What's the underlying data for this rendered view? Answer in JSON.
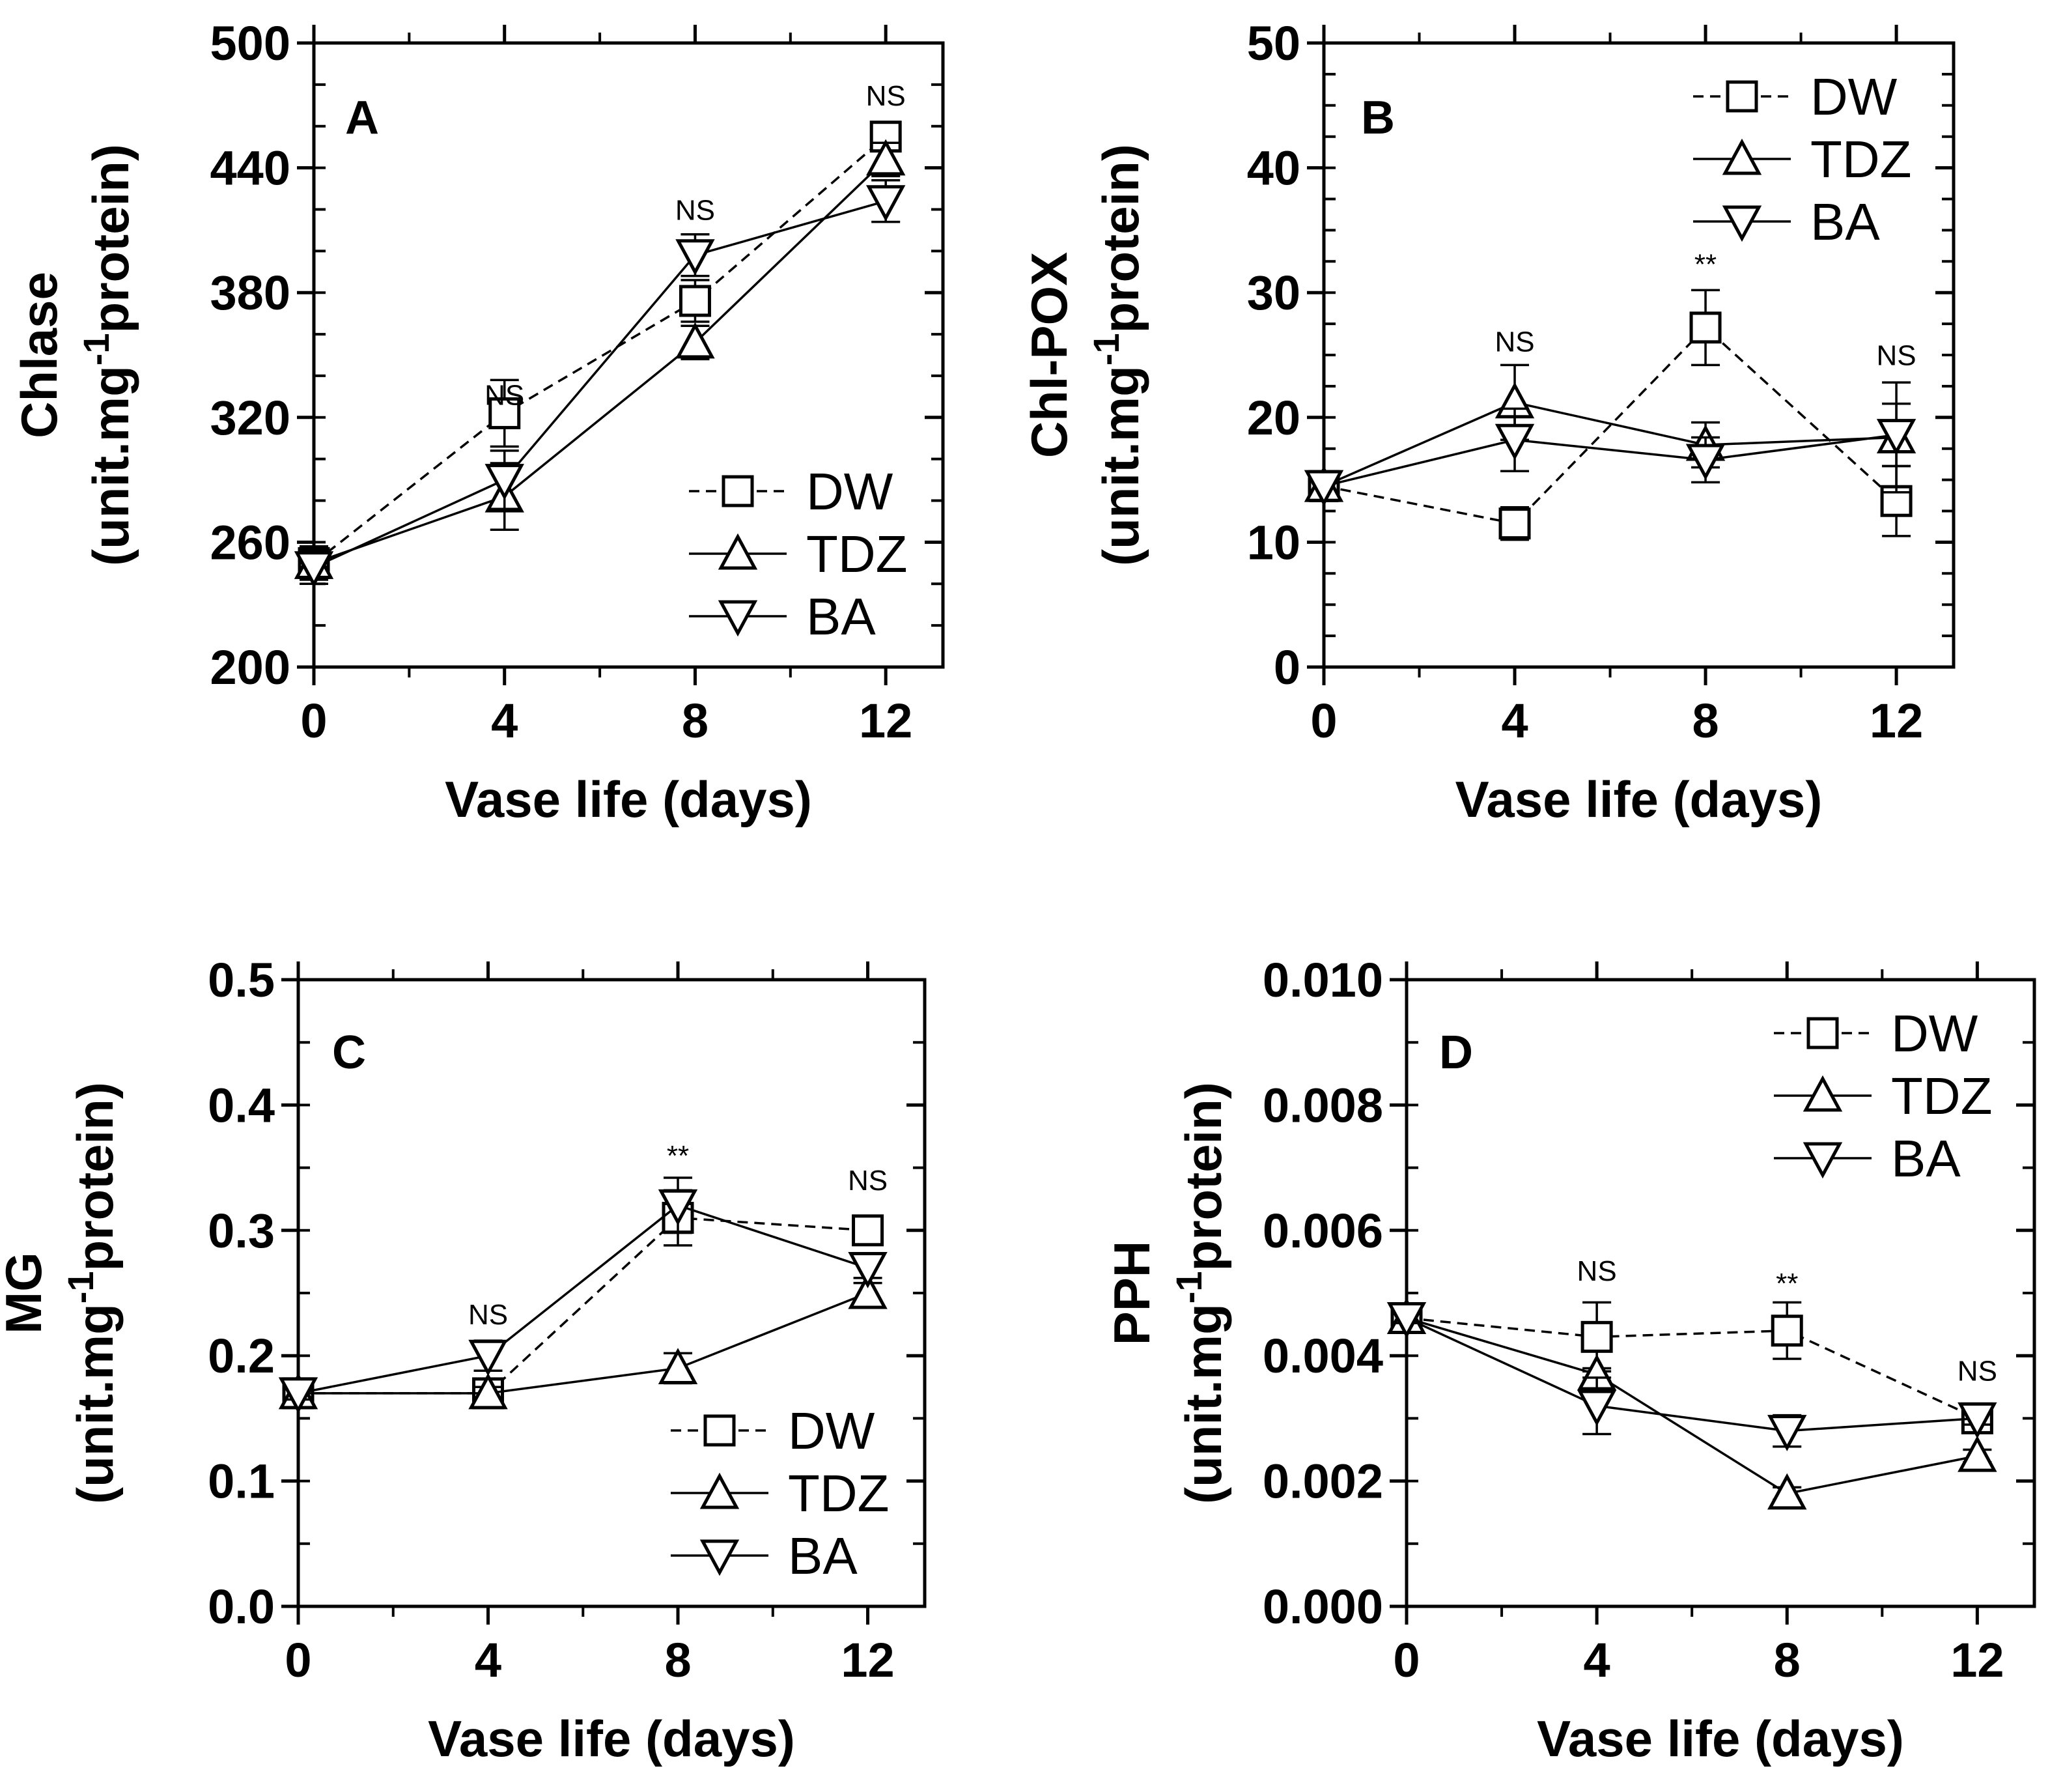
{
  "chart_data": [
    {
      "type": "line",
      "panel_label": "A",
      "title": "",
      "ylabel": "Chlase",
      "ylabel_unit": "(unit.mg",
      "ylabel_sup": "-1",
      "ylabel_unit_tail": "protein)",
      "xlabel": "Vase life (days)",
      "x": [
        0,
        4,
        8,
        12
      ],
      "xticks": [
        0,
        4,
        8,
        12
      ],
      "xtick_labels": [
        "0",
        "4",
        "8",
        "12"
      ],
      "xlim": [
        0,
        13.2
      ],
      "ylim": [
        200,
        500
      ],
      "yticks": [
        200,
        260,
        320,
        380,
        440,
        500
      ],
      "ytick_labels": [
        "200",
        "260",
        "320",
        "380",
        "440",
        "500"
      ],
      "y_minor_step": 20,
      "series": [
        {
          "name": "DW",
          "marker": "square",
          "dashed": true,
          "values": [
            250,
            322,
            376,
            455
          ],
          "errors": [
            8,
            16,
            10,
            6
          ]
        },
        {
          "name": "TDZ",
          "marker": "triangle-up",
          "dashed": false,
          "values": [
            250,
            282,
            356,
            444
          ],
          "errors": [
            8,
            16,
            8,
            8
          ]
        },
        {
          "name": "BA",
          "marker": "triangle-down",
          "dashed": false,
          "values": [
            248,
            290,
            398,
            424
          ],
          "errors": [
            8,
            14,
            10,
            10
          ]
        }
      ],
      "annotations": [
        {
          "x": 4,
          "y": 326,
          "text": "NS"
        },
        {
          "x": 8,
          "y": 415,
          "text": "NS"
        },
        {
          "x": 12,
          "y": 470,
          "text": "NS"
        }
      ],
      "legend_entries": [
        "DW",
        "TDZ",
        "BA"
      ],
      "legend_position": "bottom-right"
    },
    {
      "type": "line",
      "panel_label": "B",
      "title": "",
      "ylabel": "Chl-POX",
      "ylabel_unit": "(unit.mg",
      "ylabel_sup": "-1",
      "ylabel_unit_tail": "protein)",
      "xlabel": "Vase life (days)",
      "x": [
        0,
        4,
        8,
        12
      ],
      "xticks": [
        0,
        4,
        8,
        12
      ],
      "xtick_labels": [
        "0",
        "4",
        "8",
        "12"
      ],
      "xlim": [
        0,
        13.2
      ],
      "ylim": [
        0,
        50
      ],
      "yticks": [
        0,
        10,
        20,
        30,
        40,
        50
      ],
      "ytick_labels": [
        "0",
        "10",
        "20",
        "30",
        "40",
        "50"
      ],
      "y_minor_step": 2.5,
      "series": [
        {
          "name": "DW",
          "marker": "square",
          "dashed": true,
          "values": [
            14.5,
            11.5,
            27.2,
            13.3
          ],
          "errors": [
            1.2,
            1.3,
            3.0,
            2.8
          ]
        },
        {
          "name": "TDZ",
          "marker": "triangle-up",
          "dashed": false,
          "values": [
            14.5,
            21.2,
            17.8,
            18.4
          ],
          "errors": [
            1.2,
            3.0,
            1.8,
            4.4
          ]
        },
        {
          "name": "BA",
          "marker": "triangle-down",
          "dashed": false,
          "values": [
            14.5,
            18.2,
            16.6,
            18.6
          ],
          "errors": [
            1.2,
            2.5,
            1.8,
            2.5
          ]
        }
      ],
      "annotations": [
        {
          "x": 4,
          "y": 25.3,
          "text": "NS"
        },
        {
          "x": 8,
          "y": 31.5,
          "text": "**"
        },
        {
          "x": 12,
          "y": 24.2,
          "text": "NS"
        }
      ],
      "legend_entries": [
        "DW",
        "TDZ",
        "BA"
      ],
      "legend_position": "top-right"
    },
    {
      "type": "line",
      "panel_label": "C",
      "title": "",
      "ylabel": "MG",
      "ylabel_unit": "(unit.mg",
      "ylabel_sup": "-1",
      "ylabel_unit_tail": "protein)",
      "xlabel": "Vase life (days)",
      "x": [
        0,
        4,
        8,
        12
      ],
      "xticks": [
        0,
        4,
        8,
        12
      ],
      "xtick_labels": [
        "0",
        "4",
        "8",
        "12"
      ],
      "xlim": [
        0,
        13.2
      ],
      "ylim": [
        0.0,
        0.5
      ],
      "yticks": [
        0.0,
        0.1,
        0.2,
        0.3,
        0.4,
        0.5
      ],
      "ytick_labels": [
        "0.0",
        "0.1",
        "0.2",
        "0.3",
        "0.4",
        "0.5"
      ],
      "y_minor_step": 0.05,
      "series": [
        {
          "name": "DW",
          "marker": "square",
          "dashed": true,
          "values": [
            0.17,
            0.17,
            0.31,
            0.3
          ],
          "errors": [
            0.005,
            0.005,
            0.022,
            0.008
          ]
        },
        {
          "name": "TDZ",
          "marker": "triangle-up",
          "dashed": false,
          "values": [
            0.17,
            0.17,
            0.19,
            0.25
          ],
          "errors": [
            0.005,
            0.005,
            0.012,
            0.008
          ]
        },
        {
          "name": "BA",
          "marker": "triangle-down",
          "dashed": false,
          "values": [
            0.17,
            0.2,
            0.32,
            0.27
          ],
          "errors": [
            0.005,
            0.012,
            0.022,
            0.008
          ]
        }
      ],
      "annotations": [
        {
          "x": 4,
          "y": 0.225,
          "text": "NS"
        },
        {
          "x": 8,
          "y": 0.352,
          "text": "**"
        },
        {
          "x": 12,
          "y": 0.332,
          "text": "NS"
        }
      ],
      "legend_entries": [
        "DW",
        "TDZ",
        "BA"
      ],
      "legend_position": "bottom-right"
    },
    {
      "type": "line",
      "panel_label": "D",
      "title": "",
      "ylabel": "PPH",
      "ylabel_unit": "(unit.mg",
      "ylabel_sup": "-1",
      "ylabel_unit_tail": "protein)",
      "xlabel": "Vase life (days)",
      "x": [
        0,
        4,
        8,
        12
      ],
      "xticks": [
        0,
        4,
        8,
        12
      ],
      "xtick_labels": [
        "0",
        "4",
        "8",
        "12"
      ],
      "xlim": [
        0,
        13.2
      ],
      "ylim": [
        0.0,
        0.01
      ],
      "yticks": [
        0.0,
        0.002,
        0.004,
        0.006,
        0.008,
        0.01
      ],
      "ytick_labels": [
        "0.000",
        "0.002",
        "0.004",
        "0.006",
        "0.008",
        "0.010"
      ],
      "y_minor_step": 0.001,
      "series": [
        {
          "name": "DW",
          "marker": "square",
          "dashed": true,
          "values": [
            0.0046,
            0.0043,
            0.0044,
            0.003
          ],
          "errors": [
            8e-05,
            0.00055,
            0.00045,
            0.0001
          ]
        },
        {
          "name": "TDZ",
          "marker": "triangle-up",
          "dashed": false,
          "values": [
            0.0046,
            0.0037,
            0.0018,
            0.0024
          ],
          "errors": [
            8e-05,
            0.0001,
            0.0001,
            0.0001
          ]
        },
        {
          "name": "BA",
          "marker": "triangle-down",
          "dashed": false,
          "values": [
            0.0046,
            0.0032,
            0.0028,
            0.003
          ],
          "errors": [
            8e-05,
            0.00045,
            0.00025,
            0.0001
          ]
        }
      ],
      "annotations": [
        {
          "x": 4,
          "y": 0.0052,
          "text": "NS"
        },
        {
          "x": 8,
          "y": 0.005,
          "text": "**"
        },
        {
          "x": 12,
          "y": 0.0036,
          "text": "NS"
        }
      ],
      "legend_entries": [
        "DW",
        "TDZ",
        "BA"
      ],
      "legend_position": "top-right"
    }
  ]
}
